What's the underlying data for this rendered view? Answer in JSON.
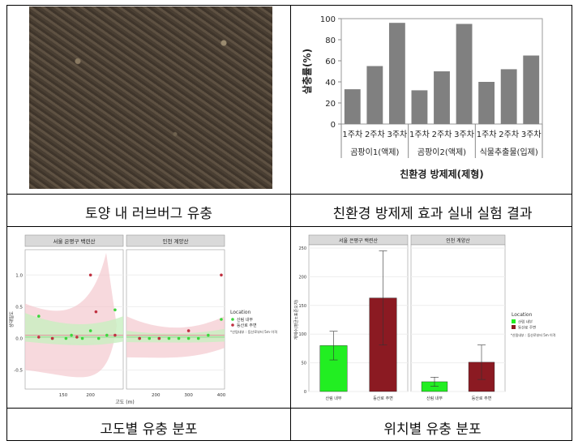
{
  "captions": {
    "top_left": "토양 내 러브버그 유충",
    "top_right": "친환경 방제제 효과 실내 실험 결과",
    "bottom_left": "고도별 유충 분포",
    "bottom_right": "위치별 유충 분포"
  },
  "chart_data": [
    {
      "type": "bar",
      "title": "",
      "xlabel": "친환경 방제제(제형)",
      "ylabel": "살충률(%)",
      "ylim": [
        0,
        100
      ],
      "yticks": [
        "0",
        "20",
        "40",
        "60",
        "80",
        "100"
      ],
      "categories": [
        "1주차",
        "2주차",
        "3주차",
        "1주차",
        "2주차",
        "3주차",
        "1주차",
        "2주차",
        "3주차"
      ],
      "groups": [
        "곰팡이1(액제)",
        "곰팡이2(액제)",
        "식물추출물(입제)"
      ],
      "values": [
        33,
        55,
        96,
        32,
        50,
        95,
        40,
        52,
        65
      ],
      "bar_color": "#808080"
    },
    {
      "type": "scatter",
      "panels": [
        "서울 은평구 백련산",
        "인천 계양산"
      ],
      "xlabel": "고도 (m)",
      "ylabel": "상대밀도",
      "xticks_left": [
        "150",
        "200"
      ],
      "xticks_right": [
        "200",
        "300",
        "400"
      ],
      "yticks": [
        "-0.5",
        "0.0",
        "0.5",
        "1.0"
      ],
      "legend_title": "Location",
      "legend": [
        "산림 내부",
        "등산로 주변"
      ],
      "legend_note": "*산림내부 : 등산로부터 5m 이격",
      "colors": {
        "inside": "#3dd63d",
        "trail": "#c03040"
      },
      "series": [
        {
          "name": "산림 내부",
          "panel": 0,
          "x": [
            105,
            130,
            155,
            165,
            185,
            200,
            215,
            230,
            245
          ],
          "y": [
            0.35,
            0.0,
            0.0,
            0.05,
            0.0,
            0.12,
            0.0,
            0.05,
            0.45
          ]
        },
        {
          "name": "등산로 주변",
          "panel": 0,
          "x": [
            105,
            130,
            175,
            200,
            210,
            245
          ],
          "y": [
            0.02,
            0.0,
            0.02,
            1.0,
            0.42,
            0.05
          ]
        },
        {
          "name": "산림 내부",
          "panel": 1,
          "x": [
            150,
            180,
            210,
            240,
            270,
            300,
            330,
            360,
            400
          ],
          "y": [
            0.0,
            0.0,
            0.0,
            0.0,
            0.0,
            0.0,
            0.0,
            0.05,
            0.3
          ]
        },
        {
          "name": "등산로 주변",
          "panel": 1,
          "x": [
            150,
            210,
            300,
            400
          ],
          "y": [
            0.0,
            0.0,
            0.12,
            1.0
          ]
        }
      ]
    },
    {
      "type": "bar",
      "panels": [
        "서울 은평구 백련산",
        "인천 계양산"
      ],
      "ylabel": "개체수(평균±표준오차)",
      "ylim": [
        0,
        250
      ],
      "yticks": [
        "0",
        "50",
        "100",
        "150",
        "200",
        "250"
      ],
      "categories": [
        "산림 내부",
        "등산로 주변"
      ],
      "series": [
        {
          "panel": 0,
          "values": [
            80,
            163
          ],
          "errors": [
            25,
            82
          ]
        },
        {
          "panel": 1,
          "values": [
            17,
            51
          ],
          "errors": [
            8,
            30
          ]
        }
      ],
      "legend_title": "Location",
      "legend": [
        "산림 내부",
        "등산로 주변"
      ],
      "legend_note": "*산림내부 : 등산로부터 5m 이격",
      "colors": {
        "inside": "#22ee22",
        "trail": "#8b1a22"
      }
    }
  ]
}
